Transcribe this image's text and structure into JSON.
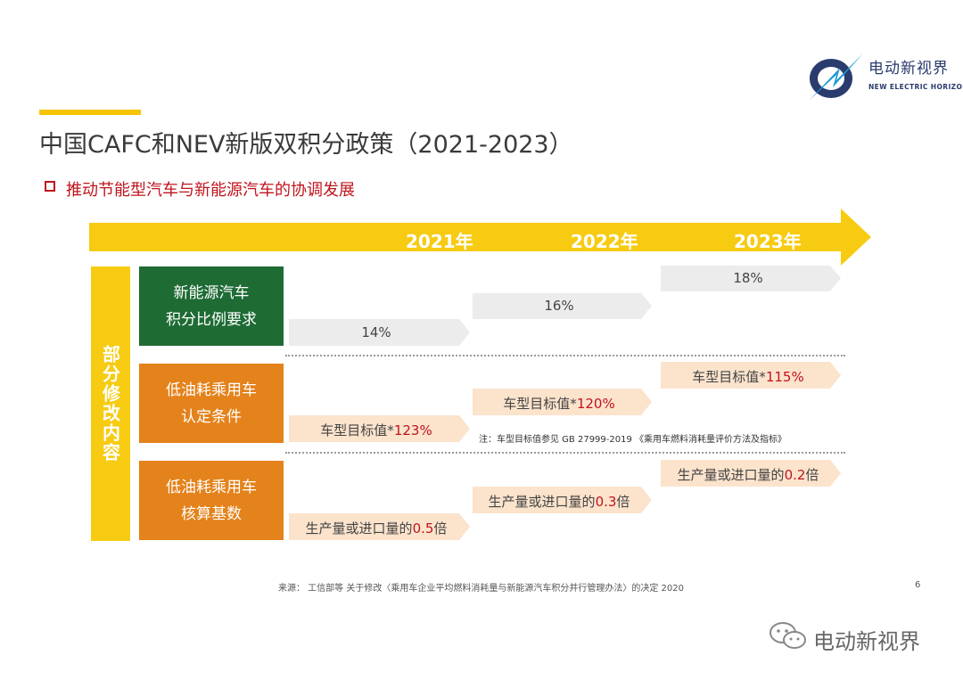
{
  "logo": {
    "name_cn": "电动新视界",
    "name_en": "NEW ELECTRIC HORIZON"
  },
  "title": "中国CAFC和NEV新版双积分政策（2021-2023）",
  "subtitle": "推动节能型汽车与新能源汽车的协调发展",
  "timeline": {
    "years": [
      "2021年",
      "2022年",
      "2023年"
    ],
    "arrow_color": "#f7cb12"
  },
  "side_label": "部分修改内容",
  "rows": [
    {
      "label_lines": [
        "新能源汽车",
        "积分比例要求"
      ],
      "color": "#1e6b34",
      "steps": [
        {
          "prefix": "14%",
          "value": "",
          "suffix": ""
        },
        {
          "prefix": "16%",
          "value": "",
          "suffix": ""
        },
        {
          "prefix": "18%",
          "value": "",
          "suffix": ""
        }
      ]
    },
    {
      "label_lines": [
        "低油耗乘用车",
        "认定条件"
      ],
      "color": "#e4821b",
      "steps": [
        {
          "prefix": "车型目标值*",
          "value": "123%",
          "suffix": ""
        },
        {
          "prefix": "车型目标值*",
          "value": "120%",
          "suffix": ""
        },
        {
          "prefix": "车型目标值*",
          "value": "115%",
          "suffix": ""
        }
      ]
    },
    {
      "label_lines": [
        "低油耗乘用车",
        "核算基数"
      ],
      "color": "#e4821b",
      "steps": [
        {
          "prefix": "生产量或进口量的",
          "value": "0.5",
          "suffix": "倍"
        },
        {
          "prefix": "生产量或进口量的",
          "value": "0.3",
          "suffix": "倍"
        },
        {
          "prefix": "生产量或进口量的",
          "value": "0.2",
          "suffix": "倍"
        }
      ]
    }
  ],
  "note": "注：车型目标值参见 GB 27999-2019 《乘用车燃料消耗量评价方法及指标》",
  "source": "来源：    工信部等  关于修改〈乘用车企业平均燃料消耗量与新能源汽车积分并行管理办法〉的决定  2020",
  "page_number": "6",
  "watermark": "电动新视界",
  "colors": {
    "accent_yellow": "#f5c400",
    "highlight_red": "#c0141d",
    "step_fill_gray": "#ececec",
    "step_fill_peach": "#fbe3cc"
  }
}
